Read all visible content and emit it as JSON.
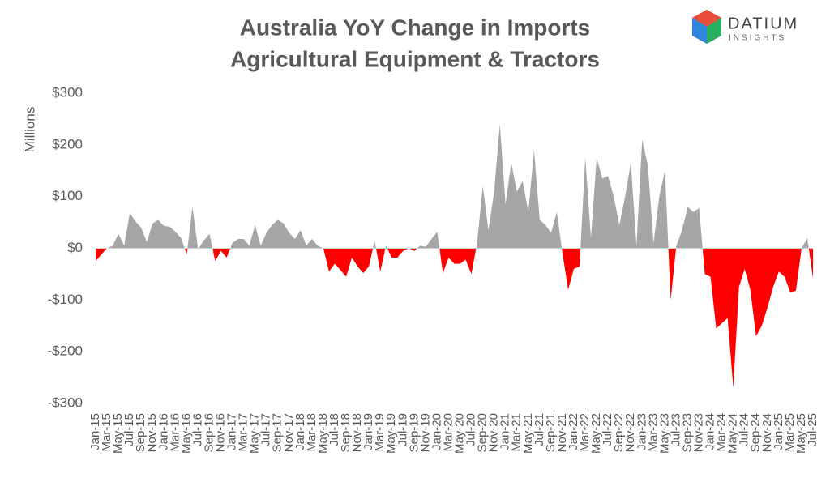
{
  "chart_data": {
    "type": "area",
    "title": "Australia YoY Change in Imports",
    "subtitle": "Agricultural Equipment & Tractors",
    "y_label": "Millions",
    "brand": {
      "name": "DATIUM",
      "tagline": "INSIGHTS"
    },
    "color": "#a6a6a6",
    "negative_color": "#ff0000",
    "categories": [
      "Jan-15",
      null,
      "Mar-15",
      null,
      "May-15",
      null,
      "Jul-15",
      null,
      "Sep-15",
      null,
      "Nov-15",
      null,
      "Jan-16",
      null,
      "Mar-16",
      null,
      "May-16",
      null,
      "Jul-16",
      null,
      "Sep-16",
      null,
      "Nov-16",
      null,
      "Jan-17",
      null,
      "Mar-17",
      null,
      "May-17",
      null,
      "Jul-17",
      null,
      "Sep-17",
      null,
      "Nov-17",
      null,
      "Jan-18",
      null,
      "Mar-18",
      null,
      "May-18",
      null,
      "Jul-18",
      null,
      "Sep-18",
      null,
      "Nov-18",
      null,
      "Jan-19",
      null,
      "Mar-19",
      null,
      "May-19",
      null,
      "Jul-19",
      null,
      "Sep-19",
      null,
      "Nov-19",
      null,
      "Jan-20",
      null,
      "Mar-20",
      null,
      "May-20",
      null,
      "Jul-20",
      null,
      "Sep-20",
      null,
      "Nov-20",
      null,
      "Jan-21",
      null,
      "Mar-21",
      null,
      "May-21",
      null,
      "Jul-21",
      null,
      "Sep-21",
      null,
      "Nov-21",
      null,
      "Jan-22",
      null,
      "Mar-22",
      null,
      "May-22",
      null,
      "Jul-22",
      null,
      "Sep-22",
      null,
      "Nov-22",
      null,
      "Jan-23",
      null,
      "Mar-23",
      null,
      "May-23",
      null,
      "Jul-23",
      null,
      "Sep-23",
      null,
      "Nov-23",
      null,
      "Jan-24",
      null,
      "Mar-24",
      null,
      "May-24",
      null,
      "Jul-24",
      null,
      "Sep-24",
      null,
      "Nov-24",
      null,
      "Jan-25",
      null,
      "Mar-25",
      null,
      "May-25",
      null,
      "Jul-25"
    ],
    "values": [
      -25,
      -12,
      0,
      5,
      28,
      5,
      68,
      52,
      40,
      12,
      48,
      55,
      43,
      42,
      32,
      20,
      -12,
      80,
      -2,
      15,
      28,
      -25,
      -5,
      -18,
      10,
      18,
      18,
      5,
      45,
      5,
      30,
      45,
      55,
      48,
      30,
      18,
      35,
      5,
      18,
      5,
      0,
      -45,
      -30,
      -42,
      -55,
      -18,
      -35,
      -48,
      -35,
      15,
      -45,
      5,
      -18,
      -18,
      -5,
      0,
      -5,
      5,
      3,
      18,
      32,
      -48,
      -18,
      -30,
      -30,
      -22,
      -50,
      10,
      120,
      35,
      110,
      240,
      85,
      165,
      110,
      130,
      70,
      190,
      55,
      45,
      30,
      70,
      -10,
      -80,
      -40,
      -35,
      175,
      20,
      175,
      135,
      140,
      100,
      45,
      100,
      165,
      5,
      210,
      160,
      10,
      100,
      150,
      -100,
      5,
      35,
      80,
      70,
      78,
      -50,
      -55,
      -155,
      -145,
      -135,
      -270,
      -75,
      -40,
      -80,
      -170,
      -150,
      -115,
      -75,
      -45,
      -55,
      -85,
      -82,
      0,
      20,
      -58
    ],
    "ylim": [
      -300,
      300
    ],
    "yticks": [
      {
        "value": -300,
        "label": "-$300"
      },
      {
        "value": -200,
        "label": "-$200"
      },
      {
        "value": -100,
        "label": "-$100"
      },
      {
        "value": 0,
        "label": "$0"
      },
      {
        "value": 100,
        "label": "$100"
      },
      {
        "value": 200,
        "label": "$200"
      },
      {
        "value": 300,
        "label": "$300"
      }
    ],
    "grid": false
  }
}
